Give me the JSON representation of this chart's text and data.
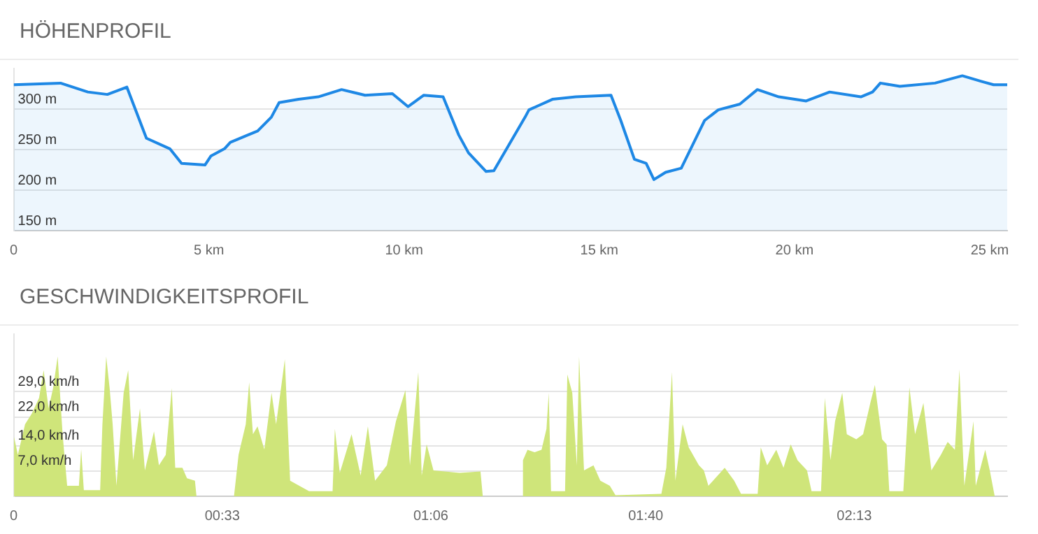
{
  "chart_data": [
    {
      "type": "area",
      "title": "HÖHENPROFIL",
      "xlim": [
        0,
        25.45
      ],
      "ylim": [
        150,
        350
      ],
      "grid": "y",
      "xticks": [
        0,
        {
          "value": 5,
          "label": "5 km"
        },
        {
          "value": 10,
          "label": "10 km"
        },
        {
          "value": 15,
          "label": "15 km"
        },
        {
          "value": 20,
          "label": "20 km"
        },
        {
          "value": 25,
          "label": "25 km"
        }
      ],
      "yticks": [
        {
          "value": 150,
          "label": "150 m"
        },
        {
          "value": 200,
          "label": "200 m"
        },
        {
          "value": 250,
          "label": "250 m"
        },
        {
          "value": 300,
          "label": "300 m"
        }
      ],
      "series": [
        {
          "color": "#1e88e5",
          "x": [
            0,
            1.2,
            1.9,
            2.4,
            2.9,
            3.4,
            4.0,
            4.3,
            4.9,
            5.05,
            5.4,
            5.55,
            6.0,
            6.25,
            6.6,
            6.8,
            7.3,
            7.8,
            8.4,
            9.0,
            9.7,
            10.1,
            10.5,
            11.0,
            11.4,
            11.65,
            12.1,
            12.3,
            13.1,
            13.2,
            13.8,
            14.4,
            15.3,
            15.55,
            15.9,
            16.2,
            16.4,
            16.7,
            17.1,
            17.7,
            18.05,
            18.6,
            19.05,
            19.6,
            20.3,
            20.9,
            21.7,
            22.0,
            22.2,
            22.7,
            23.6,
            24.3,
            24.8,
            25.1,
            25.45
          ],
          "values": [
            330,
            332,
            321,
            318,
            327,
            264,
            251,
            233,
            231,
            242,
            251,
            259,
            268,
            273,
            290,
            308,
            312,
            315,
            324,
            317,
            319,
            303,
            317,
            315,
            268,
            246,
            223,
            224,
            290,
            299,
            312,
            315,
            317,
            286,
            238,
            233,
            213,
            222,
            227,
            286,
            299,
            306,
            324,
            315,
            310,
            321,
            315,
            321,
            332,
            328,
            332,
            341,
            334,
            330,
            330
          ]
        }
      ]
    },
    {
      "type": "area",
      "title": "GESCHWINDIGKEITSPROFIL",
      "xlim": [
        0,
        2.62
      ],
      "ylim": [
        0,
        45
      ],
      "grid": "y",
      "xticks": [
        0,
        {
          "value": 0.55,
          "label": "00:33"
        },
        {
          "value": 1.1,
          "label": "01:06"
        },
        {
          "value": 1.6667,
          "label": "01:40"
        },
        {
          "value": 2.2167,
          "label": "02:13"
        }
      ],
      "yticks": [
        {
          "value": 7,
          "label": "7,0 km/h"
        },
        {
          "value": 14,
          "label": "14,0 km/h"
        },
        {
          "value": 22,
          "label": "22,0 km/h"
        },
        {
          "value": 29,
          "label": "29,0 km/h"
        }
      ],
      "series": [
        {
          "color": "#cfe57a",
          "x": [
            0.001,
            0.011,
            0.03,
            0.048,
            0.067,
            0.079,
            0.092,
            0.104,
            0.116,
            0.129,
            0.141,
            0.172,
            0.178,
            0.185,
            0.228,
            0.234,
            0.244,
            0.253,
            0.261,
            0.271,
            0.29,
            0.302,
            0.315,
            0.333,
            0.346,
            0.37,
            0.383,
            0.401,
            0.417,
            0.426,
            0.445,
            0.457,
            0.478,
            0.482,
            0.581,
            0.593,
            0.612,
            0.621,
            0.631,
            0.643,
            0.661,
            0.68,
            0.692,
            0.705,
            0.715,
            0.729,
            0.779,
            0.841,
            0.847,
            0.86,
            0.891,
            0.915,
            0.934,
            0.953,
            0.984,
            1.008,
            1.033,
            1.045,
            1.067,
            1.076,
            1.089,
            1.107,
            1.176,
            1.231,
            1.237,
            1.342,
            1.343,
            1.355,
            1.374,
            1.392,
            1.405,
            1.411,
            1.417,
            1.454,
            1.46,
            1.473,
            1.485,
            1.491,
            1.504,
            1.529,
            1.547,
            1.572,
            1.587,
            1.708,
            1.721,
            1.736,
            1.745,
            1.764,
            1.78,
            1.807,
            1.82,
            1.832,
            1.85,
            1.875,
            1.9,
            1.918,
            1.962,
            1.97,
            1.987,
            2.011,
            2.03,
            2.049,
            2.067,
            2.092,
            2.104,
            2.129,
            2.139,
            2.154,
            2.166,
            2.185,
            2.197,
            2.222,
            2.24,
            2.259,
            2.271,
            2.29,
            2.302,
            2.309,
            2.346,
            2.362,
            2.377,
            2.399,
            2.42,
            2.445,
            2.463,
            2.482,
            2.494,
            2.507,
            2.531,
            2.537,
            2.562,
            2.574,
            2.587
          ],
          "values": [
            16.5,
            11.5,
            20,
            23,
            27.3,
            35,
            24.4,
            30,
            38.8,
            17.2,
            2.9,
            2.9,
            13,
            1.7,
            1.7,
            20,
            38.8,
            30,
            20,
            2.9,
            28.7,
            35,
            10,
            24.4,
            7.2,
            18,
            8.6,
            11.5,
            30,
            7.9,
            7.9,
            5,
            4.3,
            0,
            0,
            11.5,
            20,
            31.6,
            17.2,
            19.4,
            13,
            28.7,
            20,
            30,
            38,
            4.3,
            1.4,
            1.4,
            18.7,
            6.5,
            17.2,
            5.7,
            19.4,
            4.3,
            8.6,
            20.8,
            29.5,
            8.6,
            34.5,
            5.7,
            14.4,
            7.2,
            6.5,
            6.9,
            0,
            0,
            10,
            12.9,
            12.2,
            12.9,
            18.7,
            28.7,
            1.4,
            1.4,
            33.8,
            28.7,
            8.6,
            38.8,
            7.2,
            8.6,
            4.3,
            2.9,
            0.3,
            0.7,
            7.9,
            34.5,
            4.3,
            20,
            13.6,
            8.6,
            7.2,
            2.9,
            5,
            7.9,
            4.3,
            0.7,
            0.7,
            13.6,
            8.6,
            12.9,
            7.9,
            14.4,
            10,
            7.2,
            1.4,
            1.4,
            27.3,
            10,
            20.8,
            28.7,
            17.2,
            15.8,
            17.2,
            25.9,
            30.9,
            15.8,
            14.4,
            1.4,
            1.4,
            30.2,
            17.2,
            25.9,
            7.2,
            11.5,
            15.1,
            12.9,
            35.2,
            2.9,
            20.8,
            2.9,
            12.9,
            7.2,
            0
          ]
        }
      ]
    }
  ]
}
